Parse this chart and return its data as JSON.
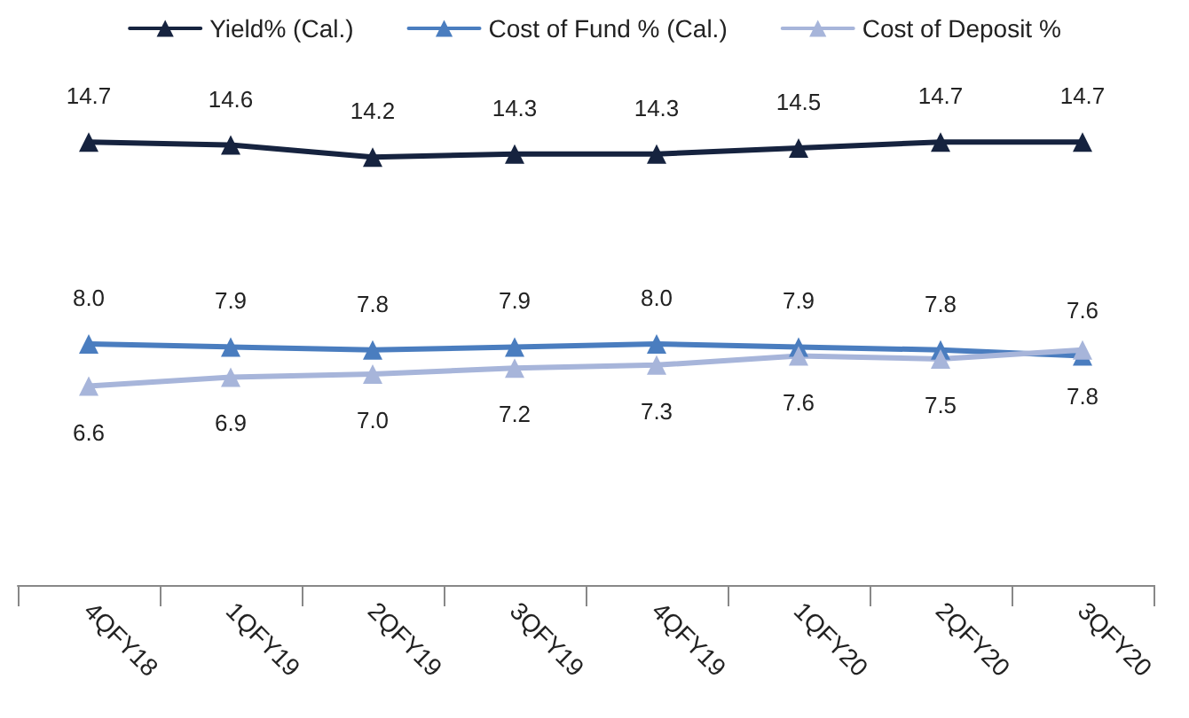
{
  "chart_data": {
    "type": "line",
    "categories": [
      "4QFY18",
      "1QFY19",
      "2QFY19",
      "3QFY19",
      "4QFY19",
      "1QFY20",
      "2QFY20",
      "3QFY20"
    ],
    "series": [
      {
        "name": "Yield% (Cal.)",
        "color": "#16233f",
        "values": [
          14.7,
          14.6,
          14.2,
          14.3,
          14.3,
          14.5,
          14.7,
          14.7
        ],
        "value_labels": [
          "14.7",
          "14.6",
          "14.2",
          "14.3",
          "14.3",
          "14.5",
          "14.7",
          "14.7"
        ]
      },
      {
        "name": "Cost of Fund % (Cal.)",
        "color": "#4a7dbf",
        "values": [
          8.0,
          7.9,
          7.8,
          7.9,
          8.0,
          7.9,
          7.8,
          7.6
        ],
        "value_labels": [
          "8.0",
          "7.9",
          "7.8",
          "7.9",
          "8.0",
          "7.9",
          "7.8",
          "7.6"
        ]
      },
      {
        "name": "Cost of Deposit %",
        "color": "#a7b5da",
        "values": [
          6.6,
          6.9,
          7.0,
          7.2,
          7.3,
          7.6,
          7.5,
          7.8
        ],
        "value_labels": [
          "6.6",
          "6.9",
          "7.0",
          "7.2",
          "7.3",
          "7.6",
          "7.5",
          "7.8"
        ]
      }
    ],
    "marker": "triangle",
    "legend": "top",
    "grid": false,
    "tick_labels": "x"
  }
}
